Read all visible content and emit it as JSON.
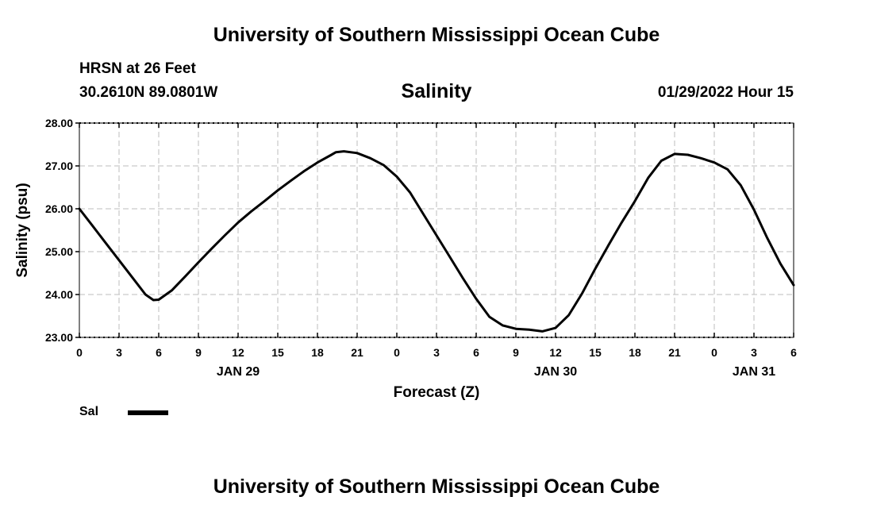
{
  "header": {
    "top_title": "University of Southern Mississippi Ocean Cube",
    "station": "HRSN at 26 Feet",
    "coords": "30.2610N  89.0801W",
    "date_label": "01/29/2022 Hour 15",
    "bottom_title": "University of Southern Mississippi Ocean Cube"
  },
  "legend": {
    "label": "Sal"
  },
  "chart_data": {
    "type": "line",
    "title": "Salinity",
    "xlabel": "Forecast (Z)",
    "ylabel": "Salinity (psu)",
    "ylim": [
      23.0,
      28.0
    ],
    "xlim": [
      0,
      54
    ],
    "grid": true,
    "yticks": [
      23,
      24,
      25,
      26,
      27,
      28
    ],
    "ytick_labels": [
      "23.00",
      "24.00",
      "25.00",
      "26.00",
      "27.00",
      "28.00"
    ],
    "xticks": [
      0,
      3,
      6,
      9,
      12,
      15,
      18,
      21,
      24,
      27,
      30,
      33,
      36,
      39,
      42,
      45,
      48,
      51,
      54
    ],
    "xtick_labels": [
      "0",
      "3",
      "6",
      "9",
      "12",
      "15",
      "18",
      "21",
      "0",
      "3",
      "6",
      "9",
      "12",
      "15",
      "18",
      "21",
      "0",
      "3",
      "6"
    ],
    "day_labels": [
      {
        "x": 12,
        "label": "JAN 29"
      },
      {
        "x": 36,
        "label": "JAN 30"
      },
      {
        "x": 51,
        "label": "JAN 31"
      }
    ],
    "series": [
      {
        "name": "Sal",
        "color": "#000000",
        "x": [
          0,
          1,
          2,
          3,
          4,
          5,
          5.6,
          6,
          7,
          8,
          9,
          10,
          11,
          12,
          13,
          14,
          15,
          16,
          17,
          18,
          19,
          19.4,
          20,
          21,
          22,
          23,
          24,
          25,
          26,
          27,
          28,
          29,
          30,
          31,
          32,
          33,
          34,
          35,
          36,
          37,
          38,
          39,
          40,
          41,
          42,
          43,
          44,
          45,
          46,
          47,
          48,
          49,
          50,
          51,
          52,
          53,
          54
        ],
        "values": [
          26.0,
          25.6,
          25.2,
          24.8,
          24.4,
          24.0,
          23.87,
          23.88,
          24.1,
          24.42,
          24.75,
          25.07,
          25.38,
          25.68,
          25.94,
          26.18,
          26.43,
          26.66,
          26.88,
          27.08,
          27.25,
          27.32,
          27.34,
          27.3,
          27.18,
          27.02,
          26.75,
          26.38,
          25.88,
          25.38,
          24.88,
          24.38,
          23.9,
          23.48,
          23.28,
          23.2,
          23.18,
          23.14,
          23.22,
          23.52,
          24.02,
          24.6,
          25.15,
          25.68,
          26.18,
          26.72,
          27.12,
          27.28,
          27.26,
          27.18,
          27.08,
          26.92,
          26.55,
          25.98,
          25.32,
          24.72,
          24.22
        ]
      }
    ]
  }
}
